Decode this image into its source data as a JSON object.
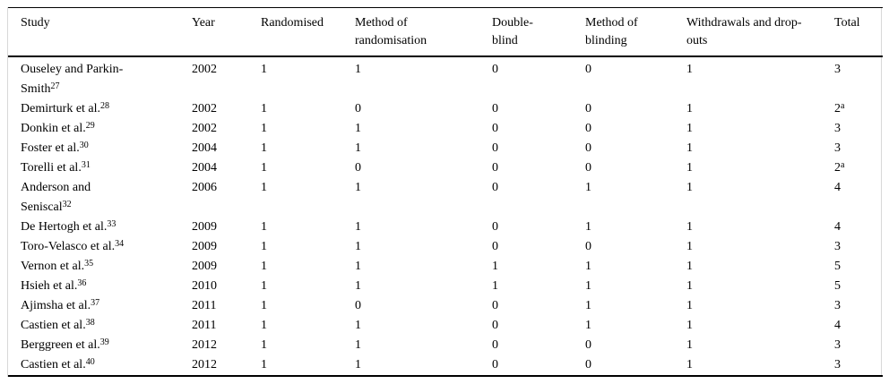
{
  "table": {
    "columns": [
      "Study",
      "Year",
      "Randomised",
      "Method of\nrandomisation",
      "Double-\nblind",
      "Method of\nblinding",
      "Withdrawals and drop-\nouts",
      "Total"
    ],
    "rows": [
      {
        "study": "Ouseley and Parkin-\nSmith",
        "ref": "27",
        "year": "2002",
        "randomised": "1",
        "method_of_randomisation": "1",
        "double_blind": "0",
        "method_of_blinding": "0",
        "withdrawals_dropouts": "1",
        "total": "3",
        "total_note": ""
      },
      {
        "study": "Demirturk et al.",
        "ref": "28",
        "year": "2002",
        "randomised": "1",
        "method_of_randomisation": "0",
        "double_blind": "0",
        "method_of_blinding": "0",
        "withdrawals_dropouts": "1",
        "total": "2",
        "total_note": "a"
      },
      {
        "study": "Donkin et al.",
        "ref": "29",
        "year": "2002",
        "randomised": "1",
        "method_of_randomisation": "1",
        "double_blind": "0",
        "method_of_blinding": "0",
        "withdrawals_dropouts": "1",
        "total": "3",
        "total_note": ""
      },
      {
        "study": "Foster et al.",
        "ref": "30",
        "year": "2004",
        "randomised": "1",
        "method_of_randomisation": "1",
        "double_blind": "0",
        "method_of_blinding": "0",
        "withdrawals_dropouts": "1",
        "total": "3",
        "total_note": ""
      },
      {
        "study": "Torelli et al.",
        "ref": "31",
        "year": "2004",
        "randomised": "1",
        "method_of_randomisation": "0",
        "double_blind": "0",
        "method_of_blinding": "0",
        "withdrawals_dropouts": "1",
        "total": "2",
        "total_note": "a"
      },
      {
        "study": "Anderson and\nSeniscal",
        "ref": "32",
        "year": "2006",
        "randomised": "1",
        "method_of_randomisation": "1",
        "double_blind": "0",
        "method_of_blinding": "1",
        "withdrawals_dropouts": "1",
        "total": "4",
        "total_note": ""
      },
      {
        "study": "De Hertogh et al.",
        "ref": "33",
        "year": "2009",
        "randomised": "1",
        "method_of_randomisation": "1",
        "double_blind": "0",
        "method_of_blinding": "1",
        "withdrawals_dropouts": "1",
        "total": "4",
        "total_note": ""
      },
      {
        "study": "Toro-Velasco et al.",
        "ref": "34",
        "year": "2009",
        "randomised": "1",
        "method_of_randomisation": "1",
        "double_blind": "0",
        "method_of_blinding": "0",
        "withdrawals_dropouts": "1",
        "total": "3",
        "total_note": ""
      },
      {
        "study": "Vernon et al.",
        "ref": "35",
        "year": "2009",
        "randomised": "1",
        "method_of_randomisation": "1",
        "double_blind": "1",
        "method_of_blinding": "1",
        "withdrawals_dropouts": "1",
        "total": "5",
        "total_note": ""
      },
      {
        "study": "Hsieh et al.",
        "ref": "36",
        "year": "2010",
        "randomised": "1",
        "method_of_randomisation": "1",
        "double_blind": "1",
        "method_of_blinding": "1",
        "withdrawals_dropouts": "1",
        "total": "5",
        "total_note": ""
      },
      {
        "study": "Ajimsha et al.",
        "ref": "37",
        "year": "2011",
        "randomised": "1",
        "method_of_randomisation": "0",
        "double_blind": "0",
        "method_of_blinding": "1",
        "withdrawals_dropouts": "1",
        "total": "3",
        "total_note": ""
      },
      {
        "study": "Castien et al.",
        "ref": "38",
        "year": "2011",
        "randomised": "1",
        "method_of_randomisation": "1",
        "double_blind": "0",
        "method_of_blinding": "1",
        "withdrawals_dropouts": "1",
        "total": "4",
        "total_note": ""
      },
      {
        "study": "Berggreen et al.",
        "ref": "39",
        "year": "2012",
        "randomised": "1",
        "method_of_randomisation": "1",
        "double_blind": "0",
        "method_of_blinding": "0",
        "withdrawals_dropouts": "1",
        "total": "3",
        "total_note": ""
      },
      {
        "study": "Castien et al.",
        "ref": "40",
        "year": "2012",
        "randomised": "1",
        "method_of_randomisation": "1",
        "double_blind": "0",
        "method_of_blinding": "0",
        "withdrawals_dropouts": "1",
        "total": "3",
        "total_note": ""
      }
    ]
  }
}
